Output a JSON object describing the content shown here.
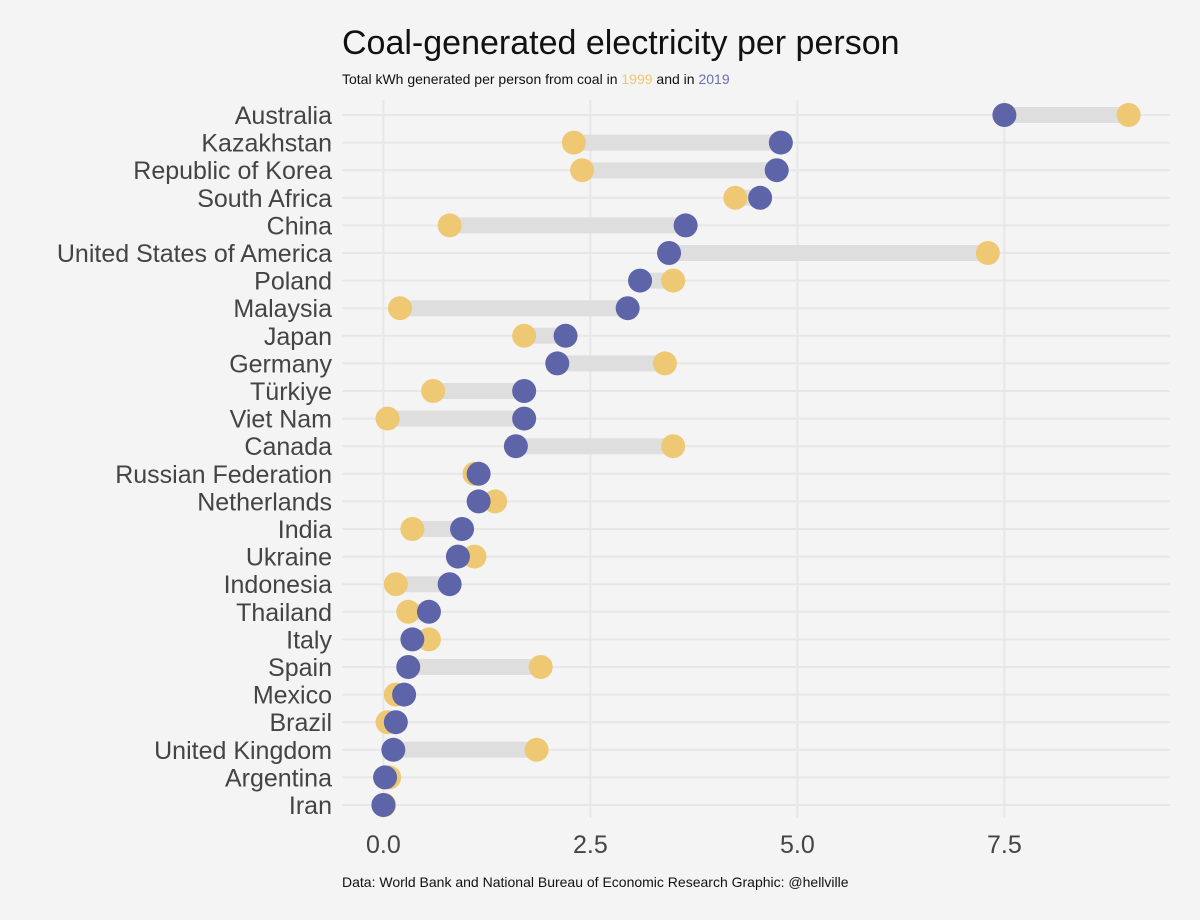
{
  "title": "Coal-generated electricity per person",
  "subtitle": {
    "prefix": "Total kWh generated per person from coal in ",
    "year1": "1999",
    "middle": " and in ",
    "year2": "2019"
  },
  "caption": "Data: World Bank and National Bureau of Economic Research Graphic: @hellville",
  "colors": {
    "background": "#f4f4f4",
    "year1": "#eec872",
    "year2": "#5d64a8",
    "segment": "#dedede",
    "grid": "#e7e7e7"
  },
  "chart_data": {
    "type": "dumbbell",
    "title": "Coal-generated electricity per person",
    "subtitle": "Total kWh generated per person from coal in 1999 and in 2019",
    "xlabel": "",
    "ylabel": "",
    "xlim": [
      -0.5,
      9.5
    ],
    "x_ticks": [
      0,
      2.5,
      5,
      7.5
    ],
    "x_tick_labels": [
      "0.0",
      "2.5",
      "5.0",
      "7.5"
    ],
    "grid": true,
    "categories": [
      "Australia",
      "Kazakhstan",
      "Republic of Korea",
      "South Africa",
      "China",
      "United States of America",
      "Poland",
      "Malaysia",
      "Japan",
      "Germany",
      "Türkiye",
      "Viet Nam",
      "Canada",
      "Russian Federation",
      "Netherlands",
      "India",
      "Ukraine",
      "Indonesia",
      "Thailand",
      "Italy",
      "Spain",
      "Mexico",
      "Brazil",
      "United Kingdom",
      "Argentina",
      "Iran"
    ],
    "series": [
      {
        "name": "1999",
        "values": [
          9.0,
          2.3,
          2.4,
          4.25,
          0.8,
          7.3,
          3.5,
          0.2,
          1.7,
          3.4,
          0.6,
          0.05,
          3.5,
          1.1,
          1.35,
          0.35,
          1.1,
          0.15,
          0.3,
          0.55,
          1.9,
          0.15,
          0.05,
          1.85,
          0.07,
          0.01
        ]
      },
      {
        "name": "2019",
        "values": [
          7.5,
          4.8,
          4.75,
          4.55,
          3.65,
          3.45,
          3.1,
          2.95,
          2.2,
          2.1,
          1.7,
          1.7,
          1.6,
          1.15,
          1.15,
          0.95,
          0.9,
          0.8,
          0.55,
          0.35,
          0.3,
          0.25,
          0.15,
          0.12,
          0.02,
          0.0
        ]
      }
    ]
  }
}
